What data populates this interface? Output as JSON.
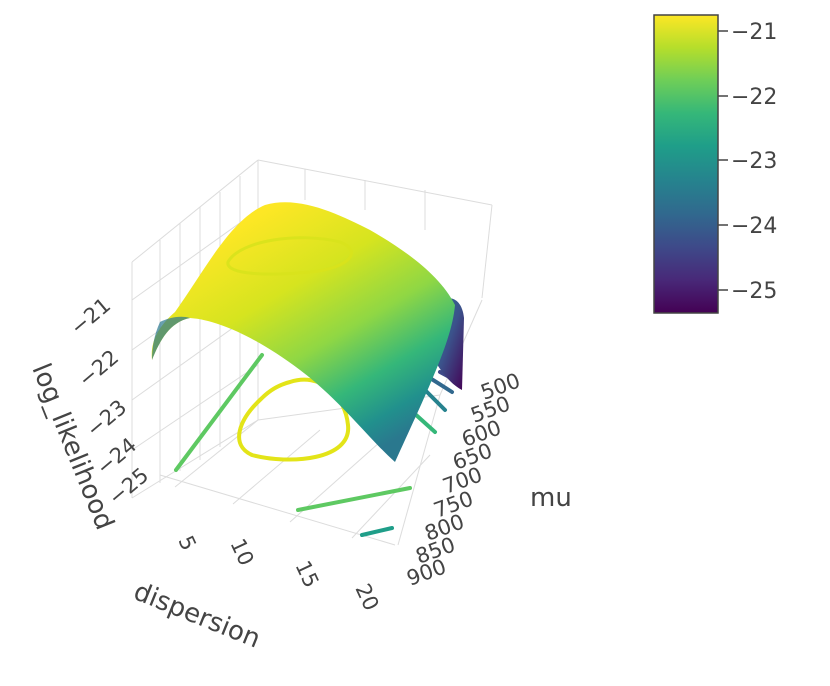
{
  "chart_data": {
    "type": "surface",
    "title": "",
    "xlabel": "dispersion",
    "ylabel": "mu",
    "zlabel": "log_likelihood",
    "x_ticks": [
      "5",
      "10",
      "15",
      "20"
    ],
    "y_ticks": [
      "500",
      "550",
      "600",
      "650",
      "700",
      "750",
      "800",
      "850",
      "900"
    ],
    "z_ticks": [
      "−21",
      "−22",
      "−23",
      "−24",
      "−25"
    ],
    "x_range": [
      2,
      21
    ],
    "y_range": [
      480,
      910
    ],
    "z_range": [
      -25.4,
      -20.6
    ],
    "peak": {
      "dispersion": 6,
      "mu": 560,
      "log_likelihood": -20.7
    },
    "colorscale": "viridis",
    "colorbar": {
      "ticks": [
        "−21",
        "−22",
        "−23",
        "−24",
        "−25"
      ],
      "range": [
        -25.4,
        -20.6
      ]
    },
    "contours_projected": true,
    "grid": true
  }
}
